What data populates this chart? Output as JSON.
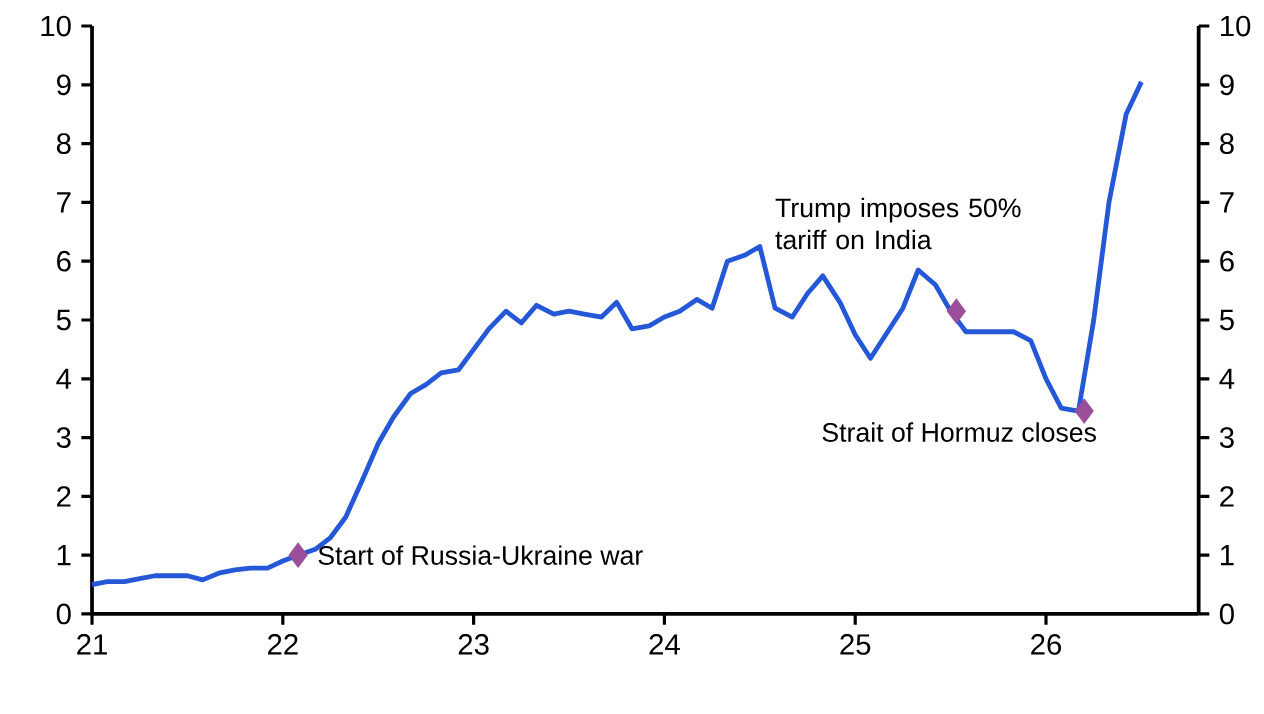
{
  "chart_data": {
    "type": "line",
    "xlim": [
      21,
      26.8
    ],
    "xticks": [
      21,
      22,
      23,
      24,
      25,
      26
    ],
    "ylim": [
      0,
      10
    ],
    "yticks": [
      0,
      1,
      2,
      3,
      4,
      5,
      6,
      7,
      8,
      9,
      10
    ],
    "y2lim": [
      0,
      10
    ],
    "y2ticks": [
      0,
      1,
      2,
      3,
      4,
      5,
      6,
      7,
      8,
      9,
      10
    ],
    "grid": false,
    "series": [
      {
        "color": "#2458d6",
        "marker": "none",
        "line_style": "solid",
        "x": [
          21.0,
          21.08,
          21.17,
          21.25,
          21.33,
          21.42,
          21.5,
          21.58,
          21.67,
          21.75,
          21.83,
          21.92,
          22.0,
          22.08,
          22.17,
          22.25,
          22.33,
          22.42,
          22.5,
          22.58,
          22.67,
          22.75,
          22.83,
          22.92,
          23.0,
          23.08,
          23.17,
          23.25,
          23.33,
          23.42,
          23.5,
          23.58,
          23.67,
          23.75,
          23.83,
          23.92,
          24.0,
          24.08,
          24.17,
          24.25,
          24.33,
          24.42,
          24.5,
          24.58,
          24.67,
          24.75,
          24.83,
          24.92,
          25.0,
          25.08,
          25.17,
          25.25,
          25.33,
          25.42,
          25.5,
          25.58,
          25.67,
          25.75,
          25.83,
          25.92,
          26.0,
          26.08,
          26.17,
          26.25,
          26.33,
          26.42,
          26.5
        ],
        "values": [
          0.5,
          0.55,
          0.55,
          0.6,
          0.65,
          0.65,
          0.65,
          0.58,
          0.7,
          0.75,
          0.78,
          0.78,
          0.9,
          1.0,
          1.1,
          1.3,
          1.65,
          2.3,
          2.9,
          3.35,
          3.75,
          3.9,
          4.1,
          4.15,
          4.5,
          4.85,
          5.15,
          4.95,
          5.25,
          5.1,
          5.15,
          5.1,
          5.05,
          5.3,
          4.85,
          4.9,
          5.05,
          5.15,
          5.35,
          5.2,
          6.0,
          6.1,
          6.25,
          5.2,
          5.05,
          5.45,
          5.75,
          5.3,
          4.75,
          4.35,
          4.8,
          5.2,
          5.85,
          5.6,
          5.15,
          4.8,
          4.8,
          4.8,
          4.8,
          4.65,
          4.0,
          3.5,
          3.45,
          5.0,
          7.0,
          8.5,
          9.05
        ]
      },
      {
        "type": "scatter",
        "color": "#9b4f9b",
        "marker": "diamond",
        "x": [
          22.08,
          25.53,
          26.2
        ],
        "values": [
          1.0,
          5.15,
          3.45
        ]
      }
    ],
    "annotations": [
      {
        "text": "Start of Russia-Ukraine war",
        "x": 22.08,
        "y": 1.0
      },
      {
        "text": "Trump imposes 50% tariff on India",
        "x": 25.53,
        "y": 5.15
      },
      {
        "text": "Strait of Hormuz closes",
        "x": 26.2,
        "y": 3.45
      }
    ]
  }
}
